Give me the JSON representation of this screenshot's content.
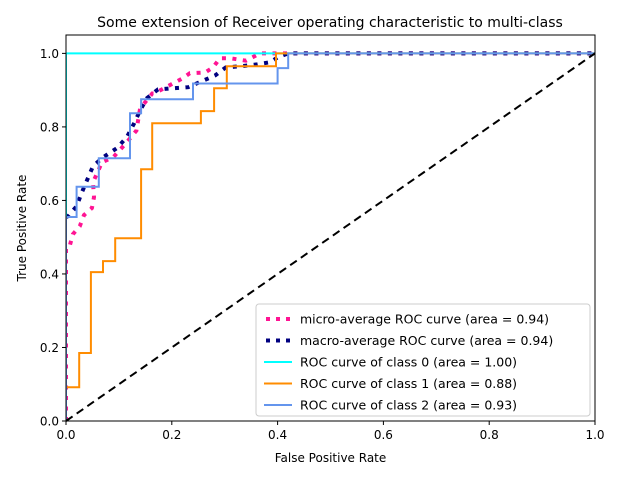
{
  "chart_data": {
    "type": "line",
    "title": "Some extension of Receiver operating characteristic to multi-class",
    "xlabel": "False Positive Rate",
    "ylabel": "True Positive Rate",
    "xlim": [
      0.0,
      1.0
    ],
    "ylim": [
      0.0,
      1.05
    ],
    "xticks": [
      0.0,
      0.2,
      0.4,
      0.6,
      0.8,
      1.0
    ],
    "xtick_labels": [
      "0.0",
      "0.2",
      "0.4",
      "0.6",
      "0.8",
      "1.0"
    ],
    "yticks": [
      0.0,
      0.2,
      0.4,
      0.6,
      0.8,
      1.0
    ],
    "ytick_labels": [
      "0.0",
      "0.2",
      "0.4",
      "0.6",
      "0.8",
      "1.0"
    ],
    "grid": false,
    "legend_position": "lower-right",
    "series": [
      {
        "name": "micro-average ROC curve (area = 0.94)",
        "color": "#ff1493",
        "style": "dotted",
        "x": [
          0.0,
          0.0,
          0.007,
          0.013,
          0.026,
          0.034,
          0.049,
          0.053,
          0.051,
          0.068,
          0.089,
          0.115,
          0.133,
          0.14,
          0.163,
          0.167,
          0.22,
          0.234,
          0.263,
          0.278,
          0.291,
          0.31,
          0.34,
          0.367,
          0.395,
          1.0
        ],
        "y": [
          0.0,
          0.47,
          0.476,
          0.508,
          0.53,
          0.56,
          0.579,
          0.609,
          0.649,
          0.704,
          0.717,
          0.758,
          0.79,
          0.85,
          0.891,
          0.891,
          0.932,
          0.946,
          0.948,
          0.962,
          0.987,
          0.987,
          0.98,
          1.0,
          1.0,
          1.0
        ]
      },
      {
        "name": "macro-average ROC curve (area = 0.94)",
        "color": "#000080",
        "style": "dotted",
        "x": [
          0.0,
          0.004,
          0.02,
          0.03,
          0.051,
          0.07,
          0.096,
          0.115,
          0.129,
          0.14,
          0.153,
          0.174,
          0.202,
          0.231,
          0.253,
          0.282,
          0.302,
          0.331,
          0.361,
          0.386,
          0.4,
          0.42,
          1.0
        ],
        "y": [
          0.555,
          0.557,
          0.584,
          0.622,
          0.693,
          0.717,
          0.742,
          0.772,
          0.81,
          0.845,
          0.878,
          0.902,
          0.905,
          0.908,
          0.922,
          0.94,
          0.962,
          0.965,
          0.97,
          0.976,
          0.989,
          1.0,
          1.0
        ]
      },
      {
        "name": "ROC curve of class 0 (area = 1.00)",
        "color": "#00ffff",
        "style": "solid",
        "x": [
          0.0,
          0.0,
          1.0
        ],
        "y": [
          0.0,
          1.0,
          1.0
        ]
      },
      {
        "name": "ROC curve of class 1 (area = 0.88)",
        "color": "#ff8c00",
        "style": "solid",
        "x": [
          0.0,
          0.0,
          0.025,
          0.025,
          0.047,
          0.047,
          0.07,
          0.07,
          0.093,
          0.093,
          0.142,
          0.142,
          0.163,
          0.163,
          0.255,
          0.255,
          0.28,
          0.28,
          0.304,
          0.304,
          0.397,
          0.397,
          1.0
        ],
        "y": [
          0.0,
          0.092,
          0.092,
          0.185,
          0.185,
          0.405,
          0.405,
          0.435,
          0.435,
          0.497,
          0.497,
          0.685,
          0.685,
          0.81,
          0.81,
          0.843,
          0.843,
          0.905,
          0.905,
          0.965,
          0.965,
          1.0,
          1.0
        ]
      },
      {
        "name": "ROC curve of class 2 (area = 0.93)",
        "color": "#6495ed",
        "style": "solid",
        "x": [
          0.0,
          0.0,
          0.02,
          0.02,
          0.062,
          0.062,
          0.121,
          0.121,
          0.142,
          0.142,
          0.24,
          0.24,
          0.4,
          0.4,
          0.42,
          0.42,
          1.0
        ],
        "y": [
          0.0,
          0.555,
          0.555,
          0.637,
          0.637,
          0.715,
          0.715,
          0.837,
          0.837,
          0.875,
          0.875,
          0.918,
          0.918,
          0.96,
          0.96,
          1.0,
          1.0
        ]
      }
    ],
    "reference_line": {
      "x": [
        0.0,
        1.0
      ],
      "y": [
        0.0,
        1.0
      ],
      "color": "#000000",
      "style": "dashed"
    }
  }
}
